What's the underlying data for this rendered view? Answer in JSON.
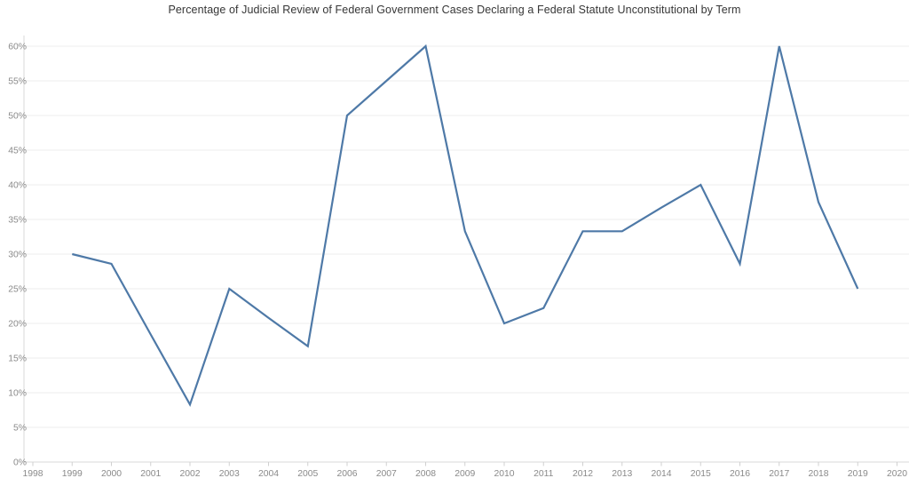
{
  "title": "Percentage of Judicial Review of Federal Government Cases Declaring a Federal Statute Unconstitutional by Term",
  "chart_data": {
    "type": "line",
    "title": "Percentage of Judicial Review of Federal Government Cases Declaring a Federal Statute Unconstitutional by Term",
    "xlabel": "",
    "ylabel": "",
    "x": [
      1999,
      2000,
      2001,
      2002,
      2003,
      2004,
      2005,
      2006,
      2007,
      2008,
      2009,
      2010,
      2011,
      2012,
      2013,
      2014,
      2015,
      2016,
      2017,
      2018,
      2019
    ],
    "values": [
      30,
      28.6,
      18.4,
      8.3,
      25,
      20.8,
      16.7,
      50,
      55,
      60,
      33.3,
      20,
      22.2,
      33.3,
      33.3,
      36.7,
      40,
      28.6,
      60,
      37.5,
      25
    ],
    "x_tick_labels": [
      "1998",
      "1999",
      "2000",
      "2001",
      "2002",
      "2003",
      "2004",
      "2005",
      "2006",
      "2007",
      "2008",
      "2009",
      "2010",
      "2011",
      "2012",
      "2013",
      "2014",
      "2015",
      "2016",
      "2017",
      "2018",
      "2019",
      "2020"
    ],
    "y_tick_labels": [
      "0%",
      "5%",
      "10%",
      "15%",
      "20%",
      "25%",
      "30%",
      "35%",
      "40%",
      "45%",
      "50%",
      "55%",
      "60%"
    ],
    "xlim": [
      1998,
      2020
    ],
    "ylim": [
      0,
      60
    ],
    "grid": "horizontal",
    "legend": "none"
  },
  "colors": {
    "line": "#4e79a7",
    "gridline": "#ececec",
    "axis_line": "#d9d9d9",
    "tick_mark": "#d0d0d0",
    "tick_text": "#8a8a8a",
    "title_text": "#363636",
    "background": "#ffffff"
  }
}
